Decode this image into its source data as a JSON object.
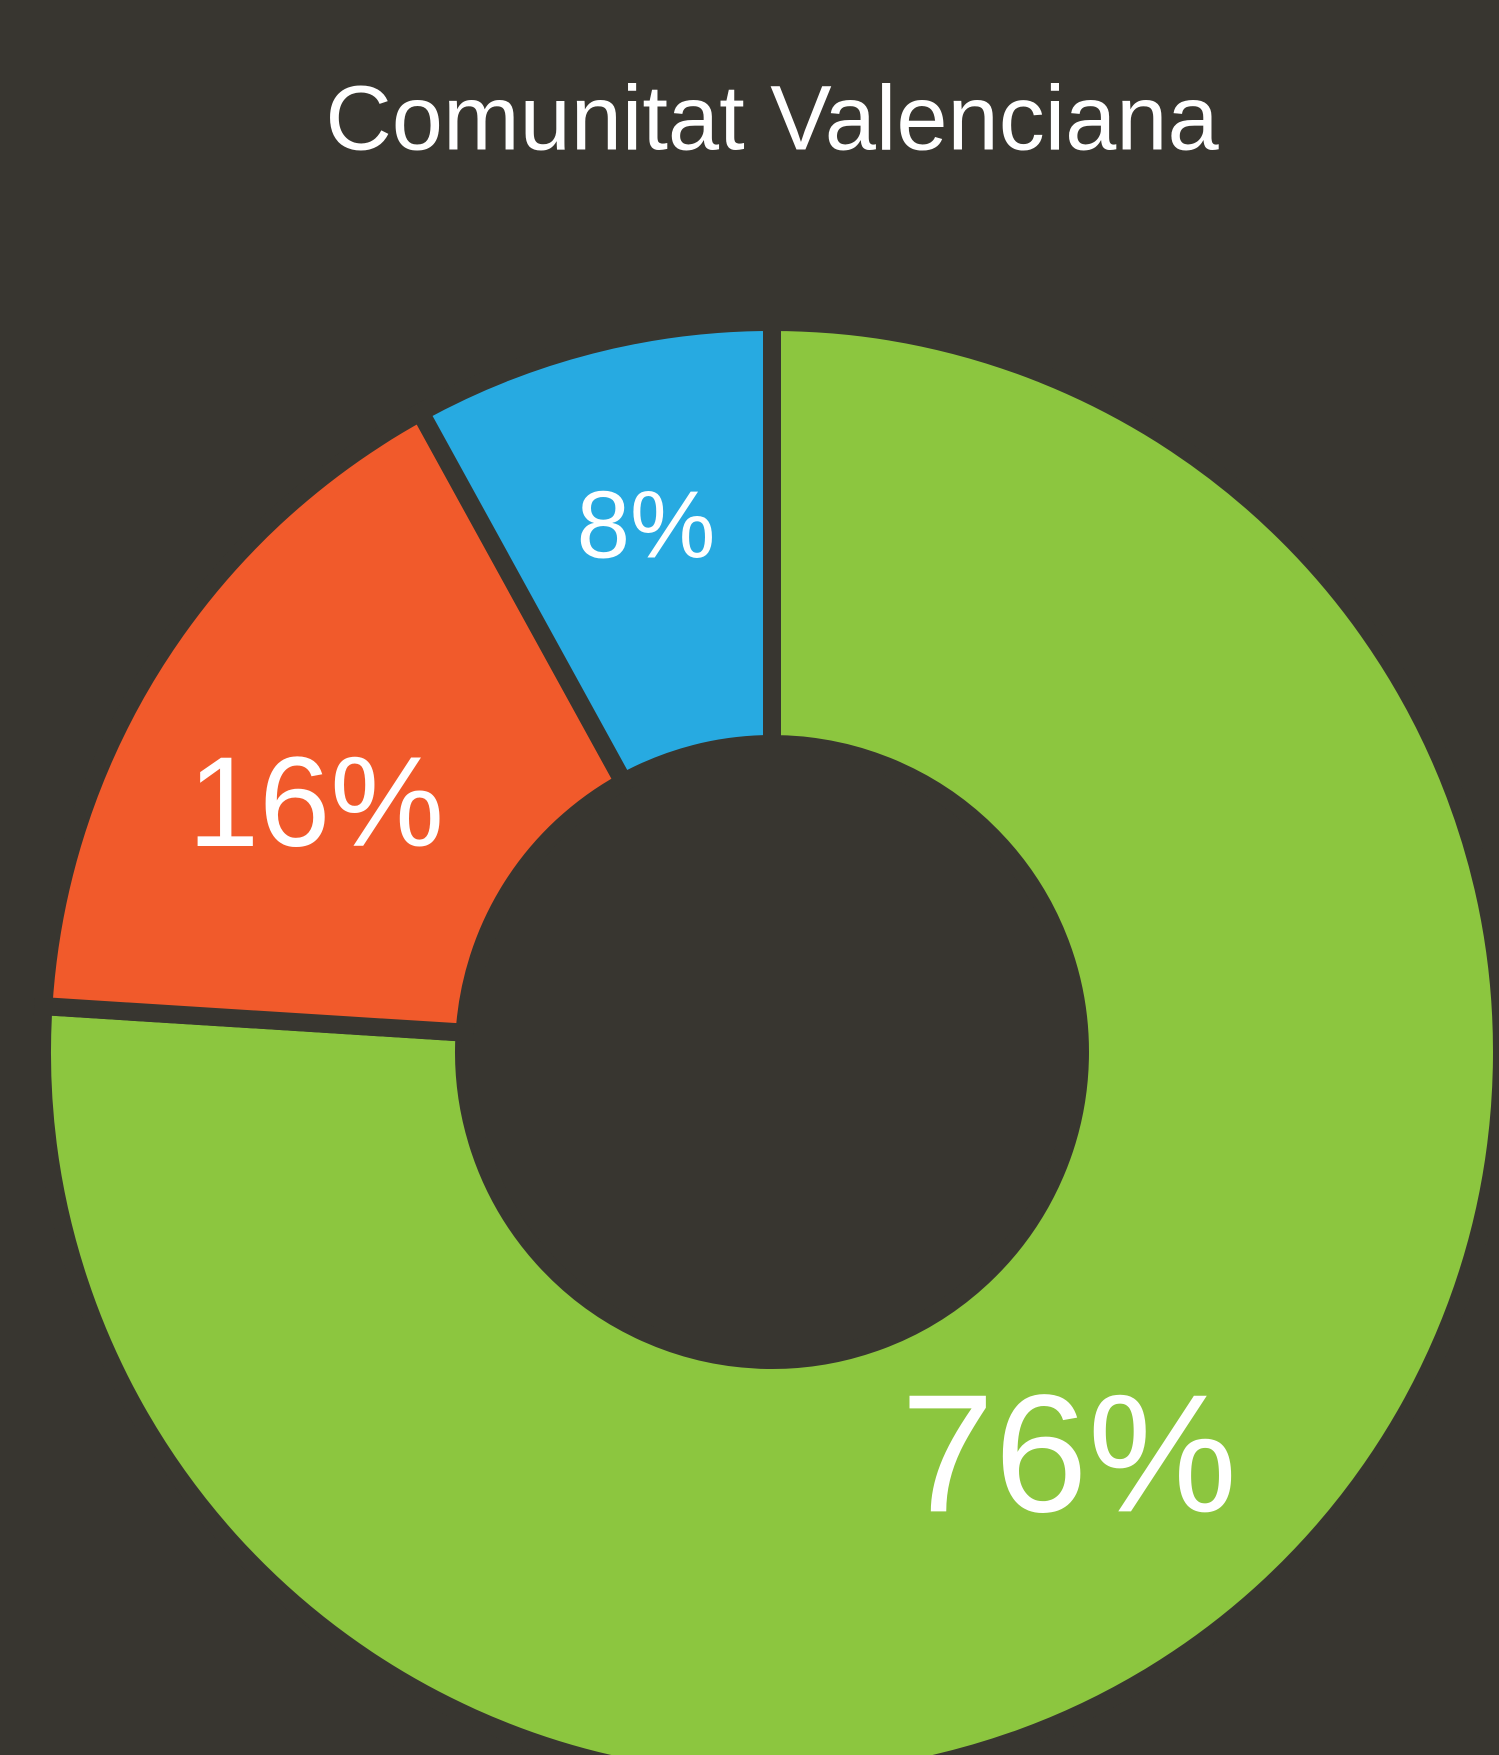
{
  "chart_data": {
    "type": "donut",
    "title": "Comunitat Valenciana",
    "values": [
      76,
      16,
      8
    ],
    "value_labels": [
      "76%",
      "16%",
      "8%"
    ],
    "colors": [
      "#8cc63f",
      "#f15a2b",
      "#27aae1"
    ]
  }
}
